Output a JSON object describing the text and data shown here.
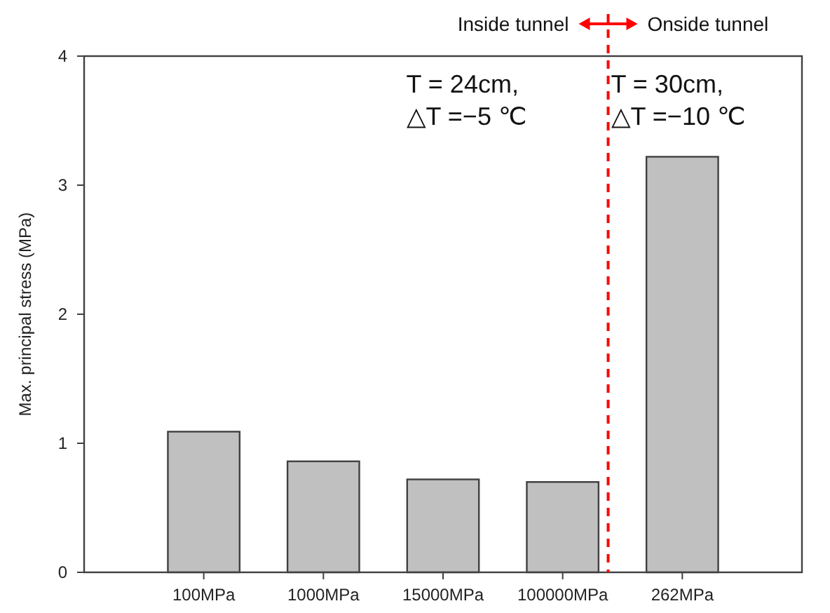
{
  "chart_data": {
    "type": "bar",
    "ylabel": "Max. principal stress (MPa)",
    "categories": [
      "100MPa",
      "1000MPa",
      "15000MPa",
      "100000MPa",
      "262MPa"
    ],
    "values": [
      1.09,
      0.86,
      0.72,
      0.7,
      3.22
    ],
    "color": "#c0c0c0",
    "ylim": [
      0,
      4
    ],
    "yticks": [
      0,
      1,
      2,
      3,
      4
    ],
    "grid": false,
    "annotations": [
      "Inside tunnel",
      "Onside tunnel",
      "T = 24cm,\n△T =−5 ℃",
      "T = 30cm,\n△T =−10 ℃"
    ]
  }
}
